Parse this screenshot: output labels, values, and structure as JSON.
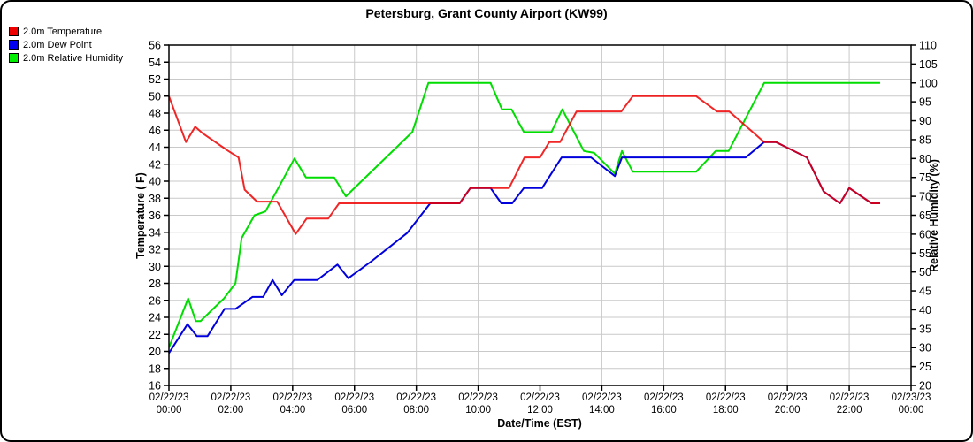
{
  "colors": {
    "temperature": "#ee0000",
    "dew_point": "#0000dd",
    "humidity": "#00dd00",
    "grid": "#c9c9c9",
    "axis": "#000000"
  },
  "legend": {
    "items": [
      {
        "label": "2.0m Temperature",
        "color": "#ee0000"
      },
      {
        "label": "2.0m Dew Point",
        "color": "#0000ee"
      },
      {
        "label": "2.0m Relative Humidity",
        "color": "#00ee00"
      }
    ]
  },
  "chart_data": {
    "type": "line",
    "title": "Petersburg, Grant County Airport (KW99)",
    "x_axis": {
      "label": "Date/Time (EST)",
      "range_hours": [
        0,
        24
      ],
      "tick_interval_hours": 2,
      "ticks": [
        {
          "date": "02/22/23",
          "time": "00:00"
        },
        {
          "date": "02/22/23",
          "time": "02:00"
        },
        {
          "date": "02/22/23",
          "time": "04:00"
        },
        {
          "date": "02/22/23",
          "time": "06:00"
        },
        {
          "date": "02/22/23",
          "time": "08:00"
        },
        {
          "date": "02/22/23",
          "time": "10:00"
        },
        {
          "date": "02/22/23",
          "time": "12:00"
        },
        {
          "date": "02/22/23",
          "time": "14:00"
        },
        {
          "date": "02/22/23",
          "time": "16:00"
        },
        {
          "date": "02/22/23",
          "time": "18:00"
        },
        {
          "date": "02/22/23",
          "time": "20:00"
        },
        {
          "date": "02/22/23",
          "time": "22:00"
        },
        {
          "date": "02/23/23",
          "time": "00:00"
        }
      ]
    },
    "y_left": {
      "label": "Temperature ( F)",
      "min": 16,
      "max": 56,
      "step": 2,
      "ticks": [
        56,
        54,
        52,
        50,
        48,
        46,
        44,
        42,
        40,
        38,
        36,
        34,
        32,
        30,
        28,
        26,
        24,
        22,
        20,
        18,
        16
      ]
    },
    "y_right": {
      "label": "Relative Humidity (%)",
      "min": 20,
      "max": 110,
      "step": 5,
      "ticks": [
        110,
        105,
        100,
        95,
        90,
        85,
        80,
        75,
        70,
        65,
        60,
        55,
        50,
        45,
        40,
        35,
        30,
        25,
        20
      ]
    },
    "grid": true,
    "legend_position": "top-left",
    "series": [
      {
        "name": "2.0m Relative Humidity",
        "axis": "right",
        "color": "#00dd00",
        "points": [
          [
            0.0,
            30
          ],
          [
            0.62,
            43
          ],
          [
            0.87,
            37
          ],
          [
            1.02,
            37
          ],
          [
            1.4,
            40
          ],
          [
            1.78,
            43
          ],
          [
            2.15,
            47
          ],
          [
            2.35,
            59
          ],
          [
            2.77,
            65
          ],
          [
            3.12,
            66
          ],
          [
            4.06,
            80
          ],
          [
            4.43,
            75
          ],
          [
            5.34,
            75
          ],
          [
            5.72,
            70
          ],
          [
            7.87,
            87
          ],
          [
            8.39,
            100
          ],
          [
            10.4,
            100
          ],
          [
            10.77,
            93
          ],
          [
            11.08,
            93
          ],
          [
            11.48,
            87
          ],
          [
            12.37,
            87
          ],
          [
            12.72,
            93
          ],
          [
            13.42,
            82
          ],
          [
            13.75,
            81.5
          ],
          [
            14.42,
            76
          ],
          [
            14.65,
            82
          ],
          [
            15.0,
            76.5
          ],
          [
            17.05,
            76.5
          ],
          [
            17.68,
            82
          ],
          [
            18.1,
            82
          ],
          [
            19.25,
            100
          ],
          [
            23.0,
            100
          ]
        ]
      },
      {
        "name": "2.0m Dew Point",
        "axis": "left",
        "color": "#0000dd",
        "points": [
          [
            0.0,
            19.8
          ],
          [
            0.6,
            23.2
          ],
          [
            0.9,
            21.8
          ],
          [
            1.25,
            21.8
          ],
          [
            1.8,
            25.0
          ],
          [
            2.15,
            25.0
          ],
          [
            2.7,
            26.4
          ],
          [
            3.05,
            26.4
          ],
          [
            3.35,
            28.4
          ],
          [
            3.65,
            26.6
          ],
          [
            4.05,
            28.4
          ],
          [
            4.8,
            28.4
          ],
          [
            5.45,
            30.2
          ],
          [
            5.8,
            28.6
          ],
          [
            6.55,
            30.6
          ],
          [
            7.7,
            33.9
          ],
          [
            8.45,
            37.4
          ],
          [
            9.4,
            37.4
          ],
          [
            9.75,
            39.2
          ],
          [
            10.4,
            39.2
          ],
          [
            10.75,
            37.4
          ],
          [
            11.1,
            37.4
          ],
          [
            11.48,
            39.2
          ],
          [
            12.07,
            39.2
          ],
          [
            12.7,
            42.8
          ],
          [
            13.65,
            42.8
          ],
          [
            14.42,
            40.6
          ],
          [
            14.65,
            42.8
          ],
          [
            18.65,
            42.8
          ],
          [
            19.25,
            44.6
          ],
          [
            19.63,
            44.6
          ],
          [
            20.63,
            42.8
          ],
          [
            21.17,
            38.8
          ],
          [
            21.7,
            37.4
          ],
          [
            22.0,
            39.2
          ],
          [
            22.72,
            37.4
          ],
          [
            23.0,
            37.4
          ]
        ]
      },
      {
        "name": "2.0m Temperature",
        "axis": "left",
        "color": "#ee0000",
        "points": [
          [
            0.0,
            50.0
          ],
          [
            0.55,
            44.6
          ],
          [
            0.85,
            46.4
          ],
          [
            1.1,
            45.6
          ],
          [
            1.9,
            43.6
          ],
          [
            2.25,
            42.8
          ],
          [
            2.45,
            39.0
          ],
          [
            2.85,
            37.6
          ],
          [
            3.5,
            37.6
          ],
          [
            4.1,
            33.8
          ],
          [
            4.45,
            35.6
          ],
          [
            5.15,
            35.6
          ],
          [
            5.5,
            37.4
          ],
          [
            9.4,
            37.4
          ],
          [
            9.75,
            39.2
          ],
          [
            11.0,
            39.2
          ],
          [
            11.5,
            42.8
          ],
          [
            12.0,
            42.8
          ],
          [
            12.3,
            44.6
          ],
          [
            12.65,
            44.6
          ],
          [
            13.18,
            48.2
          ],
          [
            14.63,
            48.2
          ],
          [
            15.0,
            50.0
          ],
          [
            17.05,
            50.0
          ],
          [
            17.72,
            48.2
          ],
          [
            18.12,
            48.2
          ],
          [
            19.25,
            44.6
          ],
          [
            19.63,
            44.6
          ],
          [
            20.63,
            42.8
          ],
          [
            21.17,
            38.8
          ],
          [
            21.7,
            37.4
          ],
          [
            22.0,
            39.2
          ],
          [
            22.72,
            37.4
          ],
          [
            23.0,
            37.4
          ]
        ]
      }
    ]
  }
}
